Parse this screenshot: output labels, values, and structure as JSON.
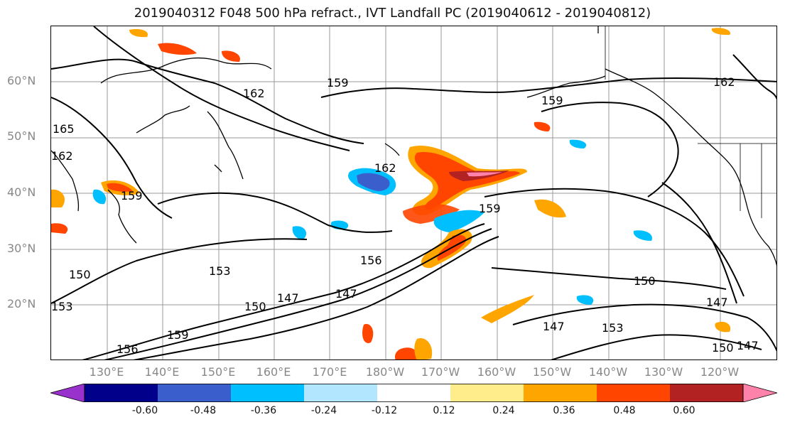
{
  "title": "2019040312 F048 500 hPa refract., IVT Landfall PC (2019040612 - 2019040812)",
  "lat_labels": [
    "60°N",
    "50°N",
    "40°N",
    "30°N",
    "20°N"
  ],
  "lon_labels": [
    "130°E",
    "140°E",
    "150°E",
    "160°E",
    "170°E",
    "180°W",
    "170°W",
    "160°W",
    "150°W",
    "140°W",
    "130°W",
    "120°W"
  ],
  "contour_labels": [
    "162",
    "159",
    "159",
    "162",
    "165",
    "162",
    "159",
    "162",
    "159",
    "153",
    "150",
    "156",
    "147",
    "147",
    "150",
    "159",
    "156",
    "150",
    "147",
    "153",
    "150",
    "147",
    "153",
    "147"
  ],
  "colorbar": {
    "ticks": [
      "-0.60",
      "-0.48",
      "-0.36",
      "-0.24",
      "-0.12",
      "0.12",
      "0.24",
      "0.36",
      "0.48",
      "0.60"
    ],
    "colors": [
      "#9932CC",
      "#00008B",
      "#3A5FCD",
      "#00BFFF",
      "#B2E6FF",
      "#FFFFFF",
      "#FFEC8B",
      "#FFA500",
      "#FF4500",
      "#B22222",
      "#FF82AB"
    ]
  }
}
